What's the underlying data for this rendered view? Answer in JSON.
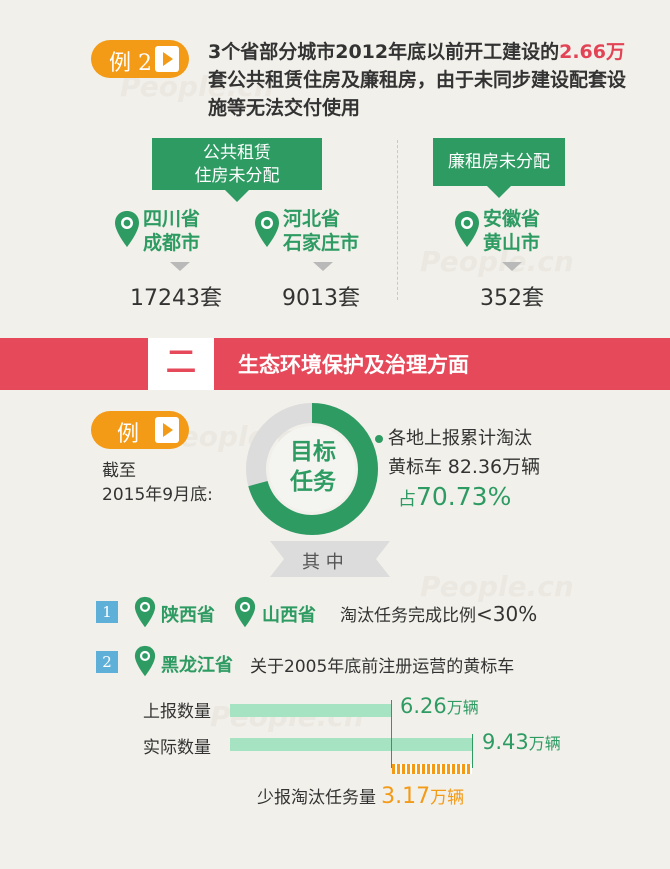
{
  "example2": {
    "tag": "例 2",
    "headline_pre": "3个省部分城市2012年底以前开工建设的",
    "headline_highlight": "2.66万",
    "headline_post": "套公共租赁住房及廉租房，由于未同步建设配套设施等无法交付使用",
    "public_rental": {
      "label_line1": "公共租赁",
      "label_line2": "住房未分配",
      "cities": [
        {
          "province": "四川省",
          "city": "成都市",
          "count": "17243套"
        },
        {
          "province": "河北省",
          "city": "石家庄市",
          "count": "9013套"
        }
      ]
    },
    "low_rent": {
      "label": "廉租房未分配",
      "cities": [
        {
          "province": "安徽省",
          "city": "黄山市",
          "count": "352套"
        }
      ]
    }
  },
  "section2": {
    "number": "二",
    "title": "生态环境保护及治理方面"
  },
  "example": {
    "tag": "例",
    "date_line1": "截至",
    "date_line2": "2015年9月底:",
    "target_line1": "目标",
    "target_line2": "任务",
    "progress_percent": 70.73,
    "report_line1": "各地上报累计淘汰",
    "report_line2_prefix": "黄标车",
    "report_line2_value": "82.36万辆",
    "share_prefix": "占",
    "share_value": "70.73%",
    "qizhong": "其 中",
    "item1": {
      "badge": "1",
      "province_a": "陕西省",
      "province_b": "山西省",
      "text_pre": "淘汰任务完成比例",
      "text_value": "<30%"
    },
    "item2": {
      "badge": "2",
      "province": "黑龙江省",
      "text": "关于2005年底前注册运营的黄标车"
    },
    "bars": [
      {
        "label": "上报数量",
        "value": 6.26,
        "value_text": "6.26",
        "unit": "万辆"
      },
      {
        "label": "实际数量",
        "value": 9.43,
        "value_text": "9.43",
        "unit": "万辆"
      }
    ],
    "gap": {
      "label": "少报淘汰任务量",
      "value_text": "3.17",
      "unit": "万辆"
    }
  },
  "colors": {
    "green": "#2e9b63",
    "red": "#e5495a",
    "orange": "#f39a17",
    "light_green": "#a6e3c3",
    "blue_badge": "#5fb0d9"
  }
}
